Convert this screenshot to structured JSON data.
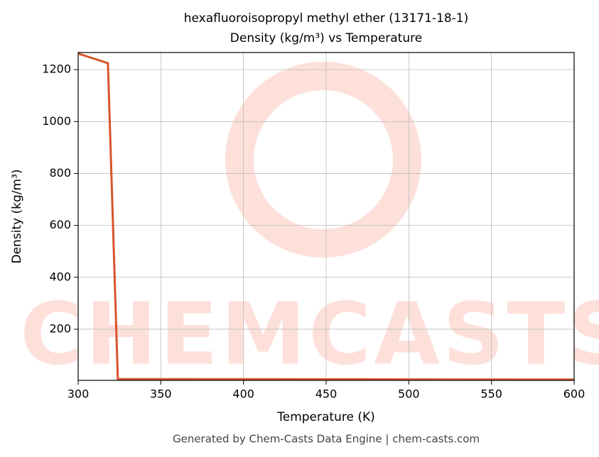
{
  "chart_data": {
    "type": "line",
    "title": "hexafluoroisopropyl methyl ether (13171-18-1)",
    "subtitle": "Density (kg/m³) vs Temperature",
    "xlabel": "Temperature (K)",
    "ylabel": "Density (kg/m³)",
    "footer": "Generated by Chem-Casts Data Engine | chem-casts.com",
    "watermark": "CHEMCASTS",
    "x": [
      300,
      318,
      324,
      600
    ],
    "series": [
      {
        "name": "Density",
        "color": "#d9532b",
        "values": [
          1262,
          1225,
          8,
          6
        ]
      }
    ],
    "xlim": [
      300,
      600
    ],
    "xticks": [
      300,
      350,
      400,
      450,
      500,
      550,
      600
    ],
    "ylim": [
      3,
      1266
    ],
    "yticks": [
      200,
      400,
      600,
      800,
      1000,
      1200
    ],
    "grid": true
  }
}
